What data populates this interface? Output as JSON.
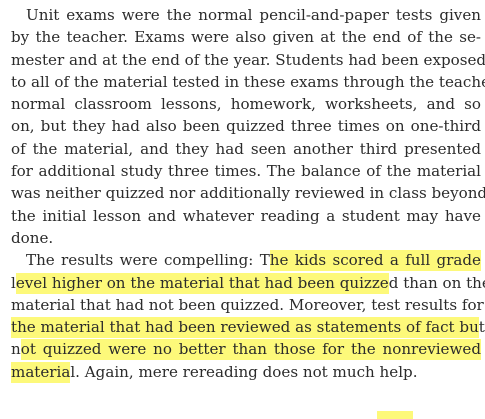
{
  "paragraph1": {
    "lines": [
      "Unit exams were the normal pencil-and-paper tests given",
      "by the teacher. Exams were also given at the end of the se-",
      "mester and at the end of the year. Students had been exposed",
      "to all of the material tested in these exams through the teacher’s",
      "normal classroom lessons, homework, worksheets, and so",
      "on, but they had also been quizzed three times on one-third",
      "of the material, and they had seen another third presented",
      "for additional study three times. The balance of the material",
      "was neither quizzed nor additionally reviewed in class beyond",
      "the initial lesson and whatever reading a student may have",
      "done."
    ]
  },
  "paragraph2": {
    "line1_pre": "The results were compelling: T",
    "line1_hl": "he kids scored a full grade",
    "line2_pre": "l",
    "line2_hl": "evel higher on the material that had been quizze",
    "line2_post": "d than on the",
    "line3": "material that had not been quizzed. Moreover, test results for",
    "line4_hl": "the material that had been reviewed as statements of fact bu",
    "line4_post": "t",
    "line5_pre": "n",
    "line5_hl": "ot quizzed were no better than those for the nonreviewed",
    "line6_hl": "materia",
    "line6_post": "l. Again, mere rereading does not much help."
  }
}
